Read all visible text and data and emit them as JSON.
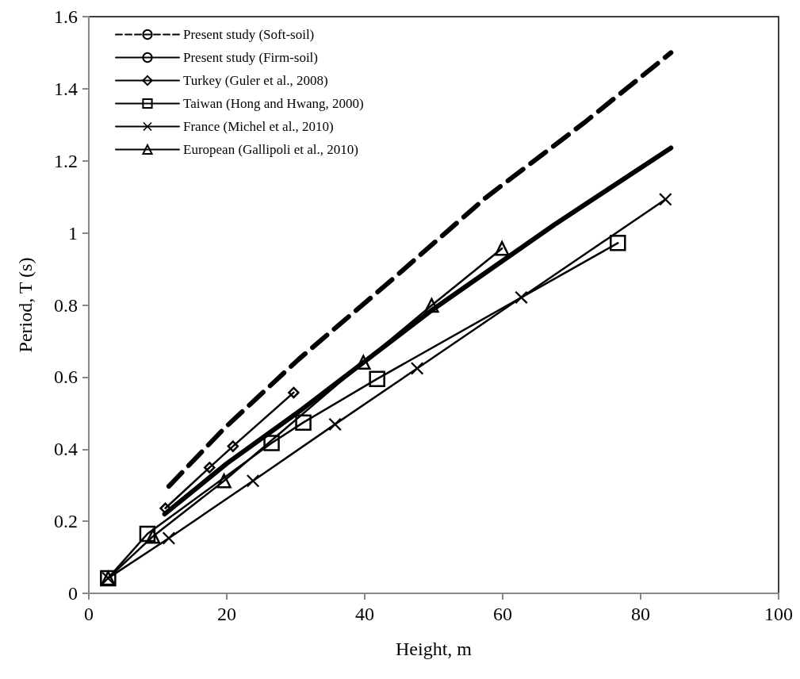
{
  "chart_data": {
    "type": "line",
    "xlabel": "Height, m",
    "ylabel": "Period, T (s)",
    "xlim": [
      0,
      100
    ],
    "xticks": [
      0,
      20,
      40,
      60,
      80,
      100
    ],
    "ylim": [
      0,
      1.6
    ],
    "yticks": [
      0,
      0.2,
      0.4,
      0.6,
      0.8,
      1,
      1.2,
      1.4,
      1.6
    ],
    "grid": false,
    "legend": "top left",
    "series": [
      {
        "name": "Present study (Soft-soil)",
        "color": "#000000",
        "line_style": "dashed",
        "marker": "none",
        "x": [
          11.6,
          19.6,
          30.4,
          43.4,
          57.5,
          72.1,
          84.4
        ],
        "values": [
          0.297,
          0.457,
          0.649,
          0.861,
          1.097,
          1.31,
          1.5
        ]
      },
      {
        "name": "Present study (Firm-soil)",
        "color": "#000000",
        "line_style": "solid",
        "marker": "none",
        "x": [
          11,
          20,
          30.8,
          49.9,
          67.5,
          84.4
        ],
        "values": [
          0.22,
          0.36,
          0.509,
          0.788,
          1.023,
          1.236
        ]
      },
      {
        "name": "Turkey (Guler et al., 2008)",
        "color": "#000000",
        "line_style": "solid",
        "marker": "diamond",
        "x": [
          11.1,
          17.5,
          20.9,
          29.7
        ],
        "values": [
          0.236,
          0.349,
          0.408,
          0.557
        ]
      },
      {
        "name": "Taiwan (Hong and Hwang, 2000)",
        "color": "#000000",
        "line_style": "solid",
        "marker": "square",
        "x": [
          2.8,
          8.5,
          26.5,
          31.1,
          41.8,
          76.7
        ],
        "values": [
          0.042,
          0.165,
          0.417,
          0.474,
          0.595,
          0.972
        ]
      },
      {
        "name": "France (Michel et al., 2010)",
        "color": "#000000",
        "line_style": "solid",
        "marker": "cross",
        "x": [
          2.8,
          11.6,
          23.8,
          35.7,
          47.6,
          62.7,
          83.6
        ],
        "values": [
          0.042,
          0.153,
          0.312,
          0.469,
          0.624,
          0.821,
          1.093
        ]
      },
      {
        "name": "European (Gallipoli et al., 2010)",
        "color": "#000000",
        "line_style": "solid",
        "marker": "triangle",
        "x": [
          2.8,
          9.3,
          19.6,
          39.8,
          49.7,
          59.9
        ],
        "values": [
          0.042,
          0.158,
          0.312,
          0.641,
          0.799,
          0.957
        ]
      }
    ]
  }
}
